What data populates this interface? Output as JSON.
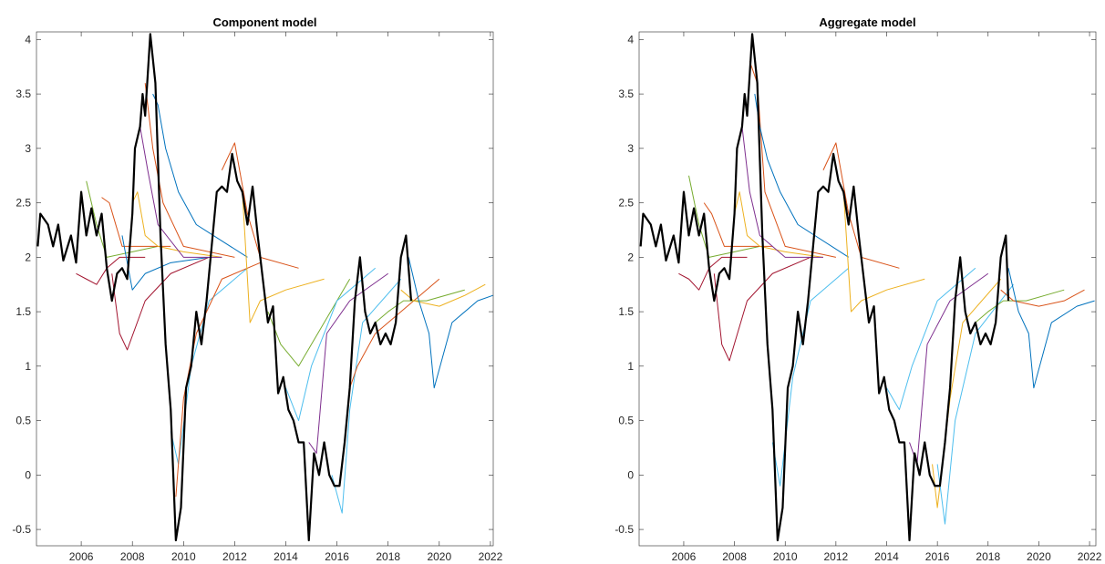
{
  "chart_data": [
    {
      "type": "line",
      "title": "Component model",
      "xlim": [
        2004.25,
        2022.11
      ],
      "ylim": [
        -0.65,
        4.07
      ],
      "xticks": [
        2006,
        2008,
        2010,
        2012,
        2014,
        2016,
        2018,
        2020,
        2022
      ],
      "yticks": [
        -0.5,
        0,
        0.5,
        1,
        1.5,
        2,
        2.5,
        3,
        3.5,
        4
      ],
      "series": [
        {
          "color": "#A2142F",
          "x": [
            2005.8,
            2006.2,
            2006.6,
            2007.0,
            2007.5,
            2008.5
          ],
          "values": [
            1.85,
            1.8,
            1.75,
            1.9,
            2.0,
            2.0
          ]
        },
        {
          "color": "#77AC30",
          "x": [
            2006.2,
            2006.6,
            2007.0,
            2008.0,
            2009.0
          ],
          "values": [
            2.7,
            2.3,
            2.0,
            2.05,
            2.1
          ]
        },
        {
          "color": "#D95319",
          "x": [
            2006.8,
            2007.1,
            2007.6,
            2008.5,
            2009.5
          ],
          "values": [
            2.55,
            2.5,
            2.1,
            2.1,
            2.1
          ]
        },
        {
          "color": "#A2142F",
          "x": [
            2007.2,
            2007.5,
            2007.8,
            2008.5,
            2009.5,
            2011
          ],
          "values": [
            1.85,
            1.3,
            1.15,
            1.6,
            1.85,
            2.0
          ]
        },
        {
          "color": "#0072BD",
          "x": [
            2007.6,
            2008.0,
            2008.5,
            2009.5,
            2011
          ],
          "values": [
            2.2,
            1.7,
            1.85,
            1.95,
            2.0
          ]
        },
        {
          "color": "#EDB120",
          "x": [
            2008.0,
            2008.2,
            2008.5,
            2009.0,
            2010,
            2011.5
          ],
          "values": [
            2.5,
            2.6,
            2.2,
            2.1,
            2.05,
            2.0
          ]
        },
        {
          "color": "#7E2F8E",
          "x": [
            2008.3,
            2008.6,
            2009.0,
            2010,
            2011.5
          ],
          "values": [
            3.2,
            2.8,
            2.3,
            2.0,
            2.0
          ]
        },
        {
          "color": "#D95319",
          "x": [
            2008.5,
            2008.8,
            2009.2,
            2010,
            2012
          ],
          "values": [
            3.6,
            3.0,
            2.5,
            2.1,
            2.0
          ]
        },
        {
          "color": "#0072BD",
          "x": [
            2008.8,
            2009.0,
            2009.3,
            2009.8,
            2010.5,
            2012.5
          ],
          "values": [
            3.5,
            3.4,
            3.0,
            2.6,
            2.3,
            2.0
          ]
        },
        {
          "color": "#4DBEEE",
          "x": [
            2009.5,
            2009.8,
            2010.3,
            2011,
            2012.5
          ],
          "values": [
            0.4,
            0.1,
            1.0,
            1.6,
            1.9
          ]
        },
        {
          "color": "#D95319",
          "x": [
            2009.7,
            2010.0,
            2010.5,
            2011.5,
            2013
          ],
          "values": [
            -0.2,
            0.7,
            1.3,
            1.8,
            1.95
          ]
        },
        {
          "color": "#D95319",
          "x": [
            2011.5,
            2012.0,
            2012.5,
            2013,
            2014.5
          ],
          "values": [
            2.8,
            3.05,
            2.4,
            2.0,
            1.9
          ]
        },
        {
          "color": "#EDB120",
          "x": [
            2012.3,
            2012.6,
            2013,
            2014,
            2015.5
          ],
          "values": [
            2.6,
            1.4,
            1.6,
            1.7,
            1.8
          ]
        },
        {
          "color": "#77AC30",
          "x": [
            2013.3,
            2013.8,
            2014.5,
            2015.5,
            2016.5
          ],
          "values": [
            1.5,
            1.2,
            1.0,
            1.4,
            1.8
          ]
        },
        {
          "color": "#4DBEEE",
          "x": [
            2014.0,
            2014.5,
            2015,
            2016,
            2017.5
          ],
          "values": [
            0.8,
            0.5,
            1.0,
            1.6,
            1.9
          ]
        },
        {
          "color": "#7E2F8E",
          "x": [
            2014.9,
            2015.2,
            2015.6,
            2016.5,
            2018
          ],
          "values": [
            0.3,
            0.2,
            1.3,
            1.6,
            1.85
          ]
        },
        {
          "color": "#4DBEEE",
          "x": [
            2015.8,
            2016.2,
            2016.5,
            2017,
            2018.5
          ],
          "values": [
            0,
            -0.35,
            0.6,
            1.4,
            1.8
          ]
        },
        {
          "color": "#D95319",
          "x": [
            2016.5,
            2016.8,
            2017.5,
            2018.5,
            2020
          ],
          "values": [
            0.8,
            1.0,
            1.3,
            1.5,
            1.8
          ]
        },
        {
          "color": "#77AC30",
          "x": [
            2017.5,
            2018,
            2018.6,
            2019.5,
            2021
          ],
          "values": [
            1.4,
            1.5,
            1.6,
            1.6,
            1.7
          ]
        },
        {
          "color": "#EDB120",
          "x": [
            2018.5,
            2019,
            2020,
            2021,
            2021.8
          ],
          "values": [
            1.7,
            1.6,
            1.55,
            1.65,
            1.75
          ]
        },
        {
          "color": "#0072BD",
          "x": [
            2018.8,
            2019.2,
            2019.6,
            2019.8,
            2020.5,
            2021.5,
            2022.1
          ],
          "values": [
            2.0,
            1.6,
            1.3,
            0.8,
            1.4,
            1.6,
            1.65
          ]
        },
        {
          "color": "#000000",
          "linewidth": 2.2,
          "x": [
            2004.3,
            2004.4,
            2004.7,
            2004.9,
            2005.1,
            2005.3,
            2005.6,
            2005.8,
            2006.0,
            2006.2,
            2006.4,
            2006.6,
            2006.8,
            2007.0,
            2007.2,
            2007.4,
            2007.6,
            2007.8,
            2008.0,
            2008.1,
            2008.3,
            2008.4,
            2008.5,
            2008.7,
            2008.9,
            2009.1,
            2009.3,
            2009.5,
            2009.7,
            2009.9,
            2010.1,
            2010.3,
            2010.5,
            2010.7,
            2010.9,
            2011.1,
            2011.3,
            2011.5,
            2011.7,
            2011.9,
            2012.1,
            2012.3,
            2012.5,
            2012.7,
            2012.9,
            2013.1,
            2013.3,
            2013.5,
            2013.7,
            2013.9,
            2014.1,
            2014.3,
            2014.5,
            2014.7,
            2014.9,
            2015.1,
            2015.3,
            2015.5,
            2015.7,
            2015.9,
            2016.1,
            2016.3,
            2016.5,
            2016.7,
            2016.9,
            2017.1,
            2017.3,
            2017.5,
            2017.7,
            2017.9,
            2018.1,
            2018.3,
            2018.5,
            2018.7,
            2018.9
          ],
          "values": [
            2.1,
            2.4,
            2.3,
            2.1,
            2.3,
            1.97,
            2.2,
            1.95,
            2.6,
            2.2,
            2.45,
            2.2,
            2.4,
            1.9,
            1.6,
            1.85,
            1.9,
            1.8,
            2.4,
            3.0,
            3.2,
            3.5,
            3.3,
            4.05,
            3.6,
            2.2,
            1.2,
            0.6,
            -0.6,
            -0.3,
            0.8,
            1.0,
            1.5,
            1.2,
            1.6,
            2.1,
            2.6,
            2.65,
            2.6,
            2.95,
            2.7,
            2.6,
            2.3,
            2.65,
            2.2,
            1.8,
            1.4,
            1.55,
            0.75,
            0.9,
            0.6,
            0.5,
            0.3,
            0.3,
            -0.6,
            0.2,
            0,
            0.3,
            0,
            -0.1,
            -0.1,
            0.3,
            0.8,
            1.6,
            2.0,
            1.5,
            1.3,
            1.4,
            1.2,
            1.3,
            1.2,
            1.4,
            2.0,
            2.2,
            1.6
          ]
        }
      ]
    },
    {
      "type": "line",
      "title": "Aggregate model",
      "xlim": [
        2004.24,
        2022.25
      ],
      "ylim": [
        -0.65,
        4.07
      ],
      "xticks": [
        2006,
        2008,
        2010,
        2012,
        2014,
        2016,
        2018,
        2020,
        2022
      ],
      "yticks": [
        -0.5,
        0,
        0.5,
        1,
        1.5,
        2,
        2.5,
        3,
        3.5,
        4
      ],
      "series": [
        {
          "color": "#A2142F",
          "x": [
            2005.8,
            2006.2,
            2006.6,
            2007.0,
            2007.5,
            2008.5
          ],
          "values": [
            1.85,
            1.8,
            1.7,
            1.9,
            2.0,
            2.0
          ]
        },
        {
          "color": "#77AC30",
          "x": [
            2006.2,
            2006.6,
            2007.0,
            2008.0,
            2009.0
          ],
          "values": [
            2.75,
            2.3,
            2.0,
            2.05,
            2.1
          ]
        },
        {
          "color": "#D95319",
          "x": [
            2006.8,
            2007.1,
            2007.6,
            2008.5,
            2009.5
          ],
          "values": [
            2.5,
            2.4,
            2.1,
            2.1,
            2.1
          ]
        },
        {
          "color": "#A2142F",
          "x": [
            2007.2,
            2007.5,
            2007.8,
            2008.5,
            2009.5,
            2011
          ],
          "values": [
            1.85,
            1.2,
            1.05,
            1.6,
            1.85,
            2.0
          ]
        },
        {
          "color": "#EDB120",
          "x": [
            2008.0,
            2008.2,
            2008.5,
            2009.0,
            2010,
            2011.5
          ],
          "values": [
            2.4,
            2.6,
            2.2,
            2.1,
            2.05,
            2.0
          ]
        },
        {
          "color": "#7E2F8E",
          "x": [
            2008.3,
            2008.6,
            2009.0,
            2010,
            2011.5
          ],
          "values": [
            3.2,
            2.6,
            2.2,
            2.0,
            2.0
          ]
        },
        {
          "color": "#D95319",
          "x": [
            2008.6,
            2008.9,
            2009.2,
            2010,
            2012
          ],
          "values": [
            3.8,
            3.6,
            2.6,
            2.1,
            2.0
          ]
        },
        {
          "color": "#0072BD",
          "x": [
            2008.8,
            2009.0,
            2009.3,
            2009.8,
            2010.5,
            2012.5
          ],
          "values": [
            3.5,
            3.2,
            2.9,
            2.6,
            2.3,
            2.0
          ]
        },
        {
          "color": "#4DBEEE",
          "x": [
            2009.5,
            2009.8,
            2010.3,
            2011,
            2012.5
          ],
          "values": [
            0.3,
            -0.1,
            0.9,
            1.6,
            1.9
          ]
        },
        {
          "color": "#D95319",
          "x": [
            2011.5,
            2012.0,
            2012.5,
            2013,
            2014.5
          ],
          "values": [
            2.8,
            3.05,
            2.4,
            2.0,
            1.9
          ]
        },
        {
          "color": "#EDB120",
          "x": [
            2012.3,
            2012.6,
            2013,
            2014,
            2015.5
          ],
          "values": [
            2.6,
            1.5,
            1.6,
            1.7,
            1.8
          ]
        },
        {
          "color": "#4DBEEE",
          "x": [
            2014.0,
            2014.5,
            2015,
            2016,
            2017.5
          ],
          "values": [
            0.8,
            0.6,
            1.0,
            1.6,
            1.9
          ]
        },
        {
          "color": "#7E2F8E",
          "x": [
            2014.9,
            2015.2,
            2015.6,
            2016.5,
            2018
          ],
          "values": [
            0.3,
            0.1,
            1.2,
            1.6,
            1.85
          ]
        },
        {
          "color": "#EDB120",
          "x": [
            2015.8,
            2016.0,
            2016.5,
            2017,
            2018.5
          ],
          "values": [
            0.1,
            -0.3,
            0.7,
            1.4,
            1.8
          ]
        },
        {
          "color": "#4DBEEE",
          "x": [
            2016.0,
            2016.3,
            2016.7,
            2017.5,
            2019
          ],
          "values": [
            0.1,
            -0.45,
            0.5,
            1.3,
            1.75
          ]
        },
        {
          "color": "#77AC30",
          "x": [
            2017.5,
            2018,
            2018.6,
            2019.5,
            2021
          ],
          "values": [
            1.4,
            1.5,
            1.6,
            1.6,
            1.7
          ]
        },
        {
          "color": "#D95319",
          "x": [
            2018.5,
            2019,
            2020,
            2021,
            2021.8
          ],
          "values": [
            1.7,
            1.6,
            1.55,
            1.6,
            1.7
          ]
        },
        {
          "color": "#0072BD",
          "x": [
            2018.8,
            2019.2,
            2019.6,
            2019.8,
            2020.5,
            2021.5,
            2022.2
          ],
          "values": [
            1.9,
            1.5,
            1.3,
            0.8,
            1.4,
            1.55,
            1.6
          ]
        },
        {
          "color": "#000000",
          "linewidth": 2.2,
          "x": [
            2004.3,
            2004.4,
            2004.7,
            2004.9,
            2005.1,
            2005.3,
            2005.6,
            2005.8,
            2006.0,
            2006.2,
            2006.4,
            2006.6,
            2006.8,
            2007.0,
            2007.2,
            2007.4,
            2007.6,
            2007.8,
            2008.0,
            2008.1,
            2008.3,
            2008.4,
            2008.5,
            2008.7,
            2008.9,
            2009.1,
            2009.3,
            2009.5,
            2009.7,
            2009.9,
            2010.1,
            2010.3,
            2010.5,
            2010.7,
            2010.9,
            2011.1,
            2011.3,
            2011.5,
            2011.7,
            2011.9,
            2012.1,
            2012.3,
            2012.5,
            2012.7,
            2012.9,
            2013.1,
            2013.3,
            2013.5,
            2013.7,
            2013.9,
            2014.1,
            2014.3,
            2014.5,
            2014.7,
            2014.9,
            2015.1,
            2015.3,
            2015.5,
            2015.7,
            2015.9,
            2016.1,
            2016.3,
            2016.5,
            2016.7,
            2016.9,
            2017.1,
            2017.3,
            2017.5,
            2017.7,
            2017.9,
            2018.1,
            2018.3,
            2018.5,
            2018.7,
            2018.8
          ],
          "values": [
            2.1,
            2.4,
            2.3,
            2.1,
            2.3,
            1.97,
            2.2,
            1.95,
            2.6,
            2.2,
            2.45,
            2.2,
            2.4,
            1.9,
            1.6,
            1.85,
            1.9,
            1.8,
            2.4,
            3.0,
            3.2,
            3.5,
            3.3,
            4.05,
            3.6,
            2.2,
            1.2,
            0.6,
            -0.6,
            -0.3,
            0.8,
            1.0,
            1.5,
            1.2,
            1.6,
            2.1,
            2.6,
            2.65,
            2.6,
            2.95,
            2.7,
            2.6,
            2.3,
            2.65,
            2.2,
            1.8,
            1.4,
            1.55,
            0.75,
            0.9,
            0.6,
            0.5,
            0.3,
            0.3,
            -0.6,
            0.2,
            0,
            0.3,
            0,
            -0.1,
            -0.1,
            0.3,
            0.8,
            1.6,
            2.0,
            1.5,
            1.3,
            1.4,
            1.2,
            1.3,
            1.2,
            1.4,
            2.0,
            2.2,
            1.6
          ]
        }
      ]
    }
  ]
}
